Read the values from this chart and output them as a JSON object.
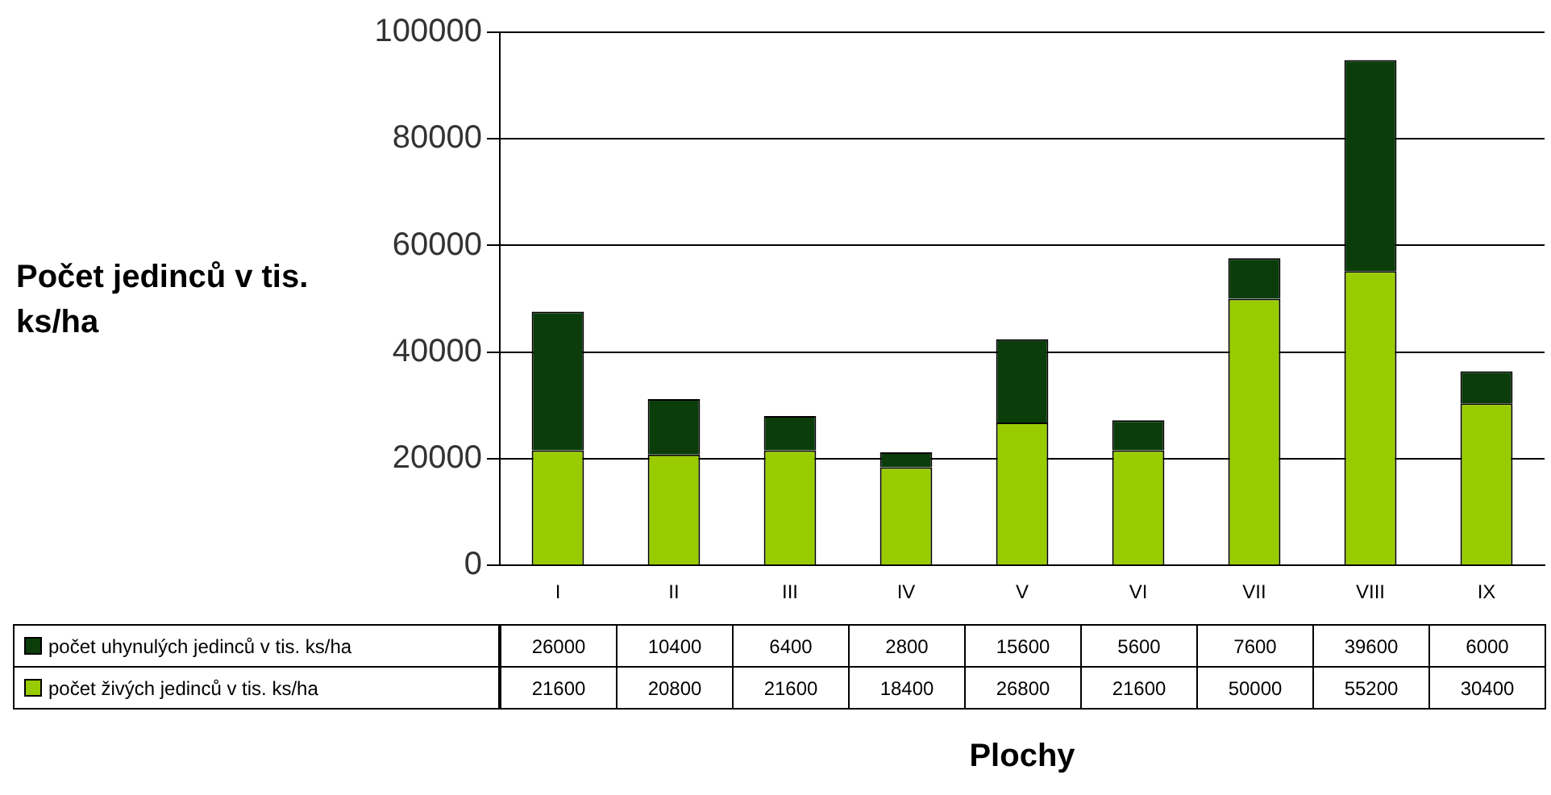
{
  "chart_data": {
    "type": "bar",
    "stacked": true,
    "xlabel": "Plochy",
    "ylabel": "Počet jedinců v tis. ks/ha",
    "categories": [
      "I",
      "II",
      "III",
      "IV",
      "V",
      "VI",
      "VII",
      "VIII",
      "IX"
    ],
    "series": [
      {
        "name": "počet živých jedinců v tis. ks/ha",
        "color": "#99cc00",
        "values": [
          21600,
          20800,
          21600,
          18400,
          26800,
          21600,
          50000,
          55200,
          30400
        ]
      },
      {
        "name": "počet uhynulých jedinců v tis. ks/ha",
        "color": "#0a3d0a",
        "values": [
          26000,
          10400,
          6400,
          2800,
          15600,
          5600,
          7600,
          39600,
          6000
        ]
      }
    ],
    "ylim": [
      0,
      100000
    ],
    "yticks": [
      0,
      20000,
      40000,
      60000,
      80000,
      100000
    ],
    "grid": "y",
    "legend": "bottom",
    "data_labels": true
  }
}
